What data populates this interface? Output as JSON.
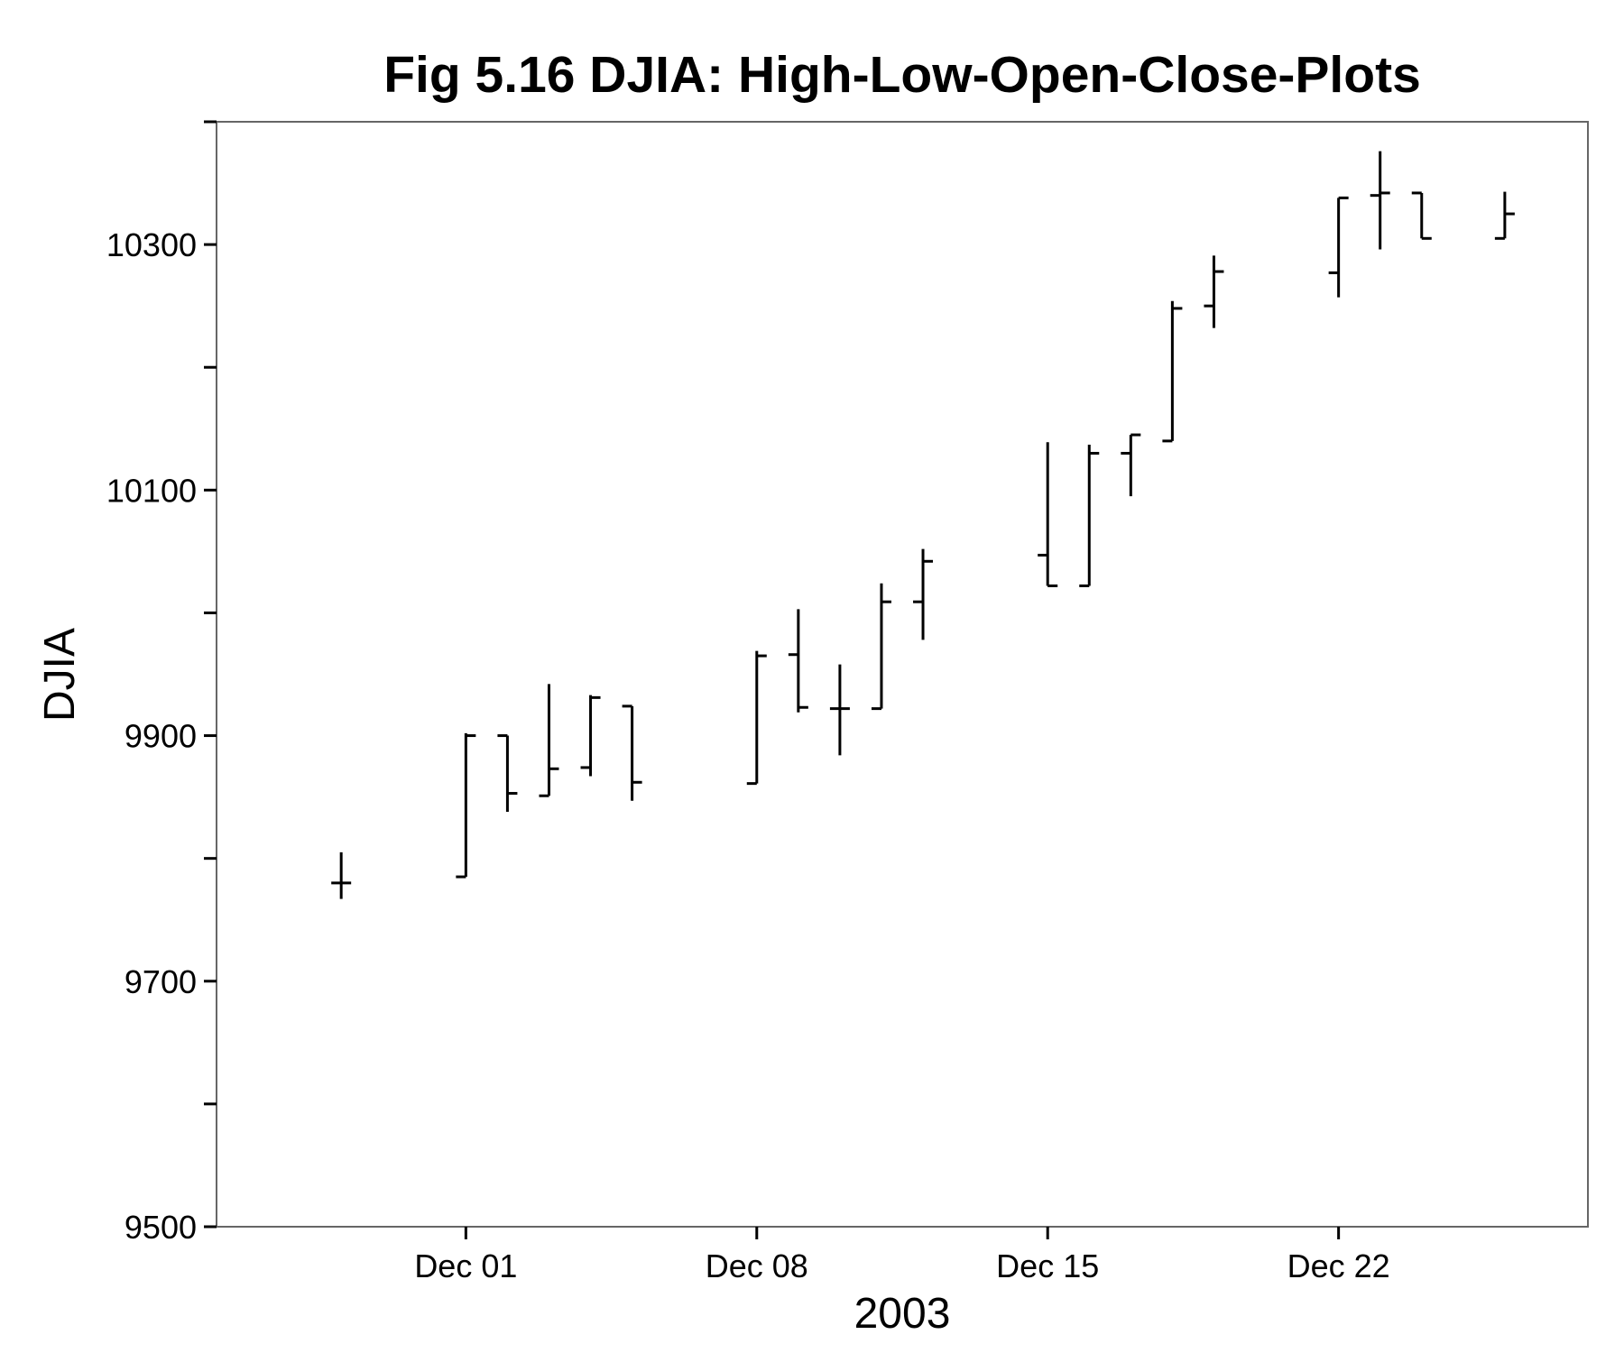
{
  "chart_data": {
    "type": "ohlc",
    "title": "Fig 5.16 DJIA: High-Low-Open-Close-Plots",
    "xlabel": "2003",
    "ylabel": "DJIA",
    "ylim": [
      9500,
      10400
    ],
    "xlim": [
      "2003-11-25",
      "2003-12-28"
    ],
    "y_ticks": [
      9500,
      9600,
      9700,
      9800,
      9900,
      10000,
      10100,
      10200,
      10300,
      10400
    ],
    "y_tick_labels": [
      "9500",
      "",
      "9700",
      "",
      "9900",
      "",
      "10100",
      "",
      "10300",
      ""
    ],
    "x_ticks": [
      {
        "date": "2003-12-01",
        "label": "Dec 01"
      },
      {
        "date": "2003-12-08",
        "label": "Dec 08"
      },
      {
        "date": "2003-12-15",
        "label": "Dec 15"
      },
      {
        "date": "2003-12-22",
        "label": "Dec 22"
      }
    ],
    "grid": false,
    "bars": [
      {
        "date": "2003-11-28",
        "open": 9780,
        "high": 9805,
        "low": 9767,
        "close": 9780
      },
      {
        "date": "2003-12-01",
        "open": 9785,
        "high": 9902,
        "low": 9785,
        "close": 9900
      },
      {
        "date": "2003-12-02",
        "open": 9900,
        "high": 9900,
        "low": 9838,
        "close": 9853
      },
      {
        "date": "2003-12-03",
        "open": 9851,
        "high": 9942,
        "low": 9851,
        "close": 9873
      },
      {
        "date": "2003-12-04",
        "open": 9874,
        "high": 9933,
        "low": 9867,
        "close": 9931
      },
      {
        "date": "2003-12-05",
        "open": 9924,
        "high": 9924,
        "low": 9847,
        "close": 9862
      },
      {
        "date": "2003-12-08",
        "open": 9861,
        "high": 9969,
        "low": 9861,
        "close": 9965
      },
      {
        "date": "2003-12-09",
        "open": 9966,
        "high": 10003,
        "low": 9919,
        "close": 9923
      },
      {
        "date": "2003-12-10",
        "open": 9922,
        "high": 9958,
        "low": 9884,
        "close": 9922
      },
      {
        "date": "2003-12-11",
        "open": 9922,
        "high": 10024,
        "low": 9922,
        "close": 10009
      },
      {
        "date": "2003-12-12",
        "open": 10009,
        "high": 10052,
        "low": 9978,
        "close": 10042
      },
      {
        "date": "2003-12-15",
        "open": 10047,
        "high": 10139,
        "low": 10022,
        "close": 10022
      },
      {
        "date": "2003-12-16",
        "open": 10022,
        "high": 10137,
        "low": 10022,
        "close": 10130
      },
      {
        "date": "2003-12-17",
        "open": 10130,
        "high": 10145,
        "low": 10095,
        "close": 10145
      },
      {
        "date": "2003-12-18",
        "open": 10140,
        "high": 10254,
        "low": 10140,
        "close": 10248
      },
      {
        "date": "2003-12-19",
        "open": 10250,
        "high": 10291,
        "low": 10232,
        "close": 10278
      },
      {
        "date": "2003-12-22",
        "open": 10277,
        "high": 10338,
        "low": 10257,
        "close": 10338
      },
      {
        "date": "2003-12-23",
        "open": 10340,
        "high": 10376,
        "low": 10296,
        "close": 10342
      },
      {
        "date": "2003-12-24",
        "open": 10342,
        "high": 10342,
        "low": 10305,
        "close": 10305
      },
      {
        "date": "2003-12-26",
        "open": 10305,
        "high": 10343,
        "low": 10305,
        "close": 10325
      }
    ]
  }
}
